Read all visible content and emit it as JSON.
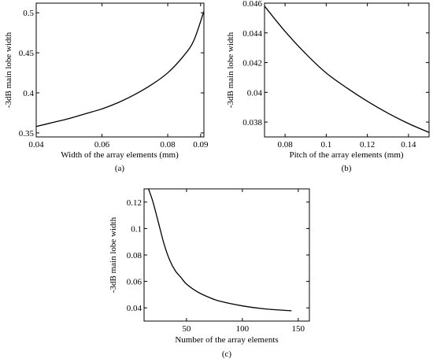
{
  "chart_data": [
    {
      "type": "line",
      "panel_label": "(a)",
      "title": "",
      "xlabel": "Width of the array elements (mm)",
      "ylabel": "-3dB main lobe width",
      "xlim": [
        0.04,
        0.091
      ],
      "ylim": [
        0.345,
        0.512
      ],
      "xticks": [
        0.04,
        0.06,
        0.08,
        0.09
      ],
      "yticks": [
        0.35,
        0.4,
        0.45,
        0.5
      ],
      "xtick_labels": [
        "0.04",
        "0.06",
        "0.08",
        "0.09"
      ],
      "ytick_labels": [
        "0.35",
        "0.4",
        "0.45",
        "0.5"
      ],
      "grid": false,
      "series": [
        {
          "x": [
            0.04,
            0.045,
            0.05,
            0.055,
            0.06,
            0.065,
            0.07,
            0.075,
            0.08,
            0.085,
            0.088,
            0.091
          ],
          "y": [
            0.358,
            0.363,
            0.368,
            0.374,
            0.38,
            0.388,
            0.398,
            0.41,
            0.425,
            0.447,
            0.466,
            0.502
          ]
        }
      ]
    },
    {
      "type": "line",
      "panel_label": "(b)",
      "title": "",
      "xlabel": "Pitch of the array elements (mm)",
      "ylabel": "-3dB main lobe width",
      "xlim": [
        0.07,
        0.15
      ],
      "ylim": [
        0.037,
        0.046
      ],
      "xticks": [
        0.08,
        0.1,
        0.12,
        0.14
      ],
      "yticks": [
        0.038,
        0.04,
        0.042,
        0.044,
        0.046
      ],
      "xtick_labels": [
        "0.08",
        "0.1",
        "0.12",
        "0.14"
      ],
      "ytick_labels": [
        "0.038",
        "0.04",
        "0.042",
        "0.044",
        "0.046"
      ],
      "grid": false,
      "series": [
        {
          "x": [
            0.07,
            0.08,
            0.09,
            0.1,
            0.11,
            0.12,
            0.13,
            0.14,
            0.15
          ],
          "y": [
            0.0458,
            0.0441,
            0.0426,
            0.0413,
            0.0403,
            0.0394,
            0.0386,
            0.0379,
            0.0373
          ]
        }
      ]
    },
    {
      "type": "line",
      "panel_label": "(c)",
      "title": "",
      "xlabel": "Number of the array elements",
      "ylabel": "-3dB main lobe width",
      "xlim": [
        12,
        160
      ],
      "ylim": [
        0.03,
        0.13
      ],
      "xticks": [
        50,
        100,
        150
      ],
      "yticks": [
        0.04,
        0.06,
        0.08,
        0.1,
        0.12
      ],
      "xtick_labels": [
        "50",
        "100",
        "150"
      ],
      "ytick_labels": [
        "0.04",
        "0.06",
        "0.08",
        "0.1",
        "0.12"
      ],
      "grid": false,
      "series": [
        {
          "x": [
            16,
            20,
            25,
            30,
            35,
            40,
            45,
            50,
            60,
            70,
            80,
            100,
            120,
            144
          ],
          "y": [
            0.13,
            0.12,
            0.104,
            0.088,
            0.076,
            0.068,
            0.063,
            0.058,
            0.052,
            0.048,
            0.045,
            0.0415,
            0.0392,
            0.0378
          ]
        }
      ]
    }
  ]
}
